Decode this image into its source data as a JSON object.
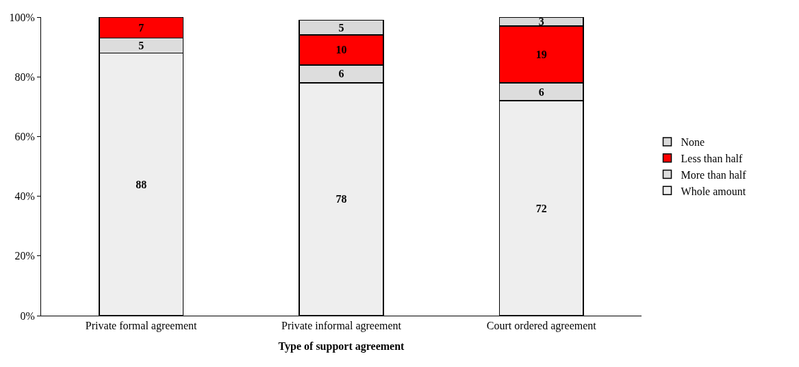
{
  "chart_data": {
    "type": "bar",
    "stacked": true,
    "xlabel": "Type of support agreement",
    "categories": [
      "Private formal agreement",
      "Private informal agreement",
      "Court ordered agreement"
    ],
    "series": [
      {
        "name": "Whole amount",
        "color": "#eeeeee",
        "values": [
          88,
          78,
          72
        ],
        "value_labels": [
          "88",
          "78",
          "72"
        ]
      },
      {
        "name": "More than half",
        "color": "#dddddd",
        "values": [
          5,
          6,
          6
        ],
        "value_labels": [
          "5",
          "6",
          "6"
        ]
      },
      {
        "name": "Less than half",
        "color": "#ff0000",
        "values": [
          7,
          10,
          19
        ],
        "value_labels": [
          "7",
          "10",
          "19"
        ]
      },
      {
        "name": "None",
        "color": "#d9d9d9",
        "values": [
          null,
          5,
          3
        ],
        "value_labels": [
          null,
          "5",
          "3"
        ]
      }
    ],
    "ylim": [
      0,
      100
    ],
    "yticks": [
      {
        "value": 0,
        "label": "0%"
      },
      {
        "value": 20,
        "label": "20%"
      },
      {
        "value": 40,
        "label": "40%"
      },
      {
        "value": 60,
        "label": "60%"
      },
      {
        "value": 80,
        "label": "80%"
      },
      {
        "value": 100,
        "label": "100%"
      }
    ],
    "grid": false,
    "legend": "right"
  }
}
